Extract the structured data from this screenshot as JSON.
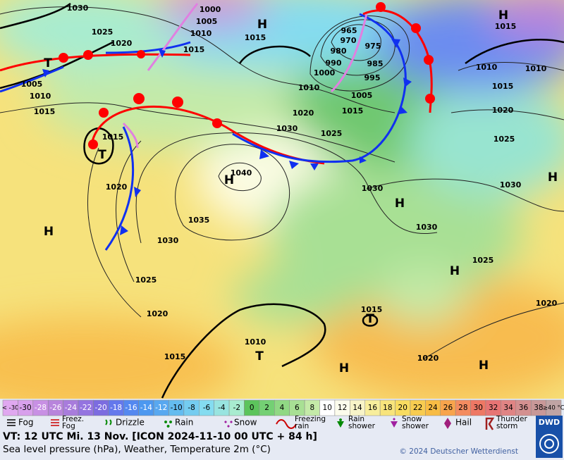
{
  "map": {
    "pressure_labels": [
      "1030",
      "1025",
      "1020",
      "1005",
      "1010",
      "1015",
      "1015",
      "1020",
      "1040",
      "1035",
      "1030",
      "1025",
      "1020",
      "1015",
      "1010",
      "1030",
      "1020",
      "1025",
      "1010",
      "1015",
      "1015",
      "1005",
      "1010",
      "1015",
      "1000",
      "965",
      "970",
      "975",
      "980",
      "990",
      "985",
      "1000",
      "995",
      "1005",
      "1030",
      "1030",
      "1025",
      "1030",
      "1020",
      "1020",
      "1015",
      "1015",
      "1010",
      "1010",
      "1015",
      "1020",
      "1025"
    ],
    "centers": [
      "H",
      "H",
      "T",
      "T",
      "H",
      "H",
      "H",
      "H",
      "H",
      "H",
      "H",
      "T",
      "T"
    ]
  },
  "temperature_scale": {
    "labels": [
      "< -30",
      "-30",
      "-28",
      "-26",
      "-24",
      "-22",
      "-20",
      "-18",
      "-16",
      "-14",
      "-12",
      "-10",
      "-8",
      "-6",
      "-4",
      "-2",
      "0",
      "2",
      "4",
      "6",
      "8",
      "10",
      "12",
      "14",
      "16",
      "18",
      "20",
      "22",
      "24",
      "26",
      "28",
      "30",
      "32",
      "34",
      "36",
      "38",
      "≥40 °C"
    ],
    "colors": [
      "#e0a8f0",
      "#d8a0ec",
      "#c890e4",
      "#b884dc",
      "#a87cdc",
      "#9474e0",
      "#7c6ce0",
      "#6478ec",
      "#5488f0",
      "#4c98f0",
      "#58a8f0",
      "#64bcf0",
      "#74ccf0",
      "#84dcf0",
      "#98e4e0",
      "#a8ecd0",
      "#5cc45c",
      "#74d074",
      "#90d884",
      "#a8e094",
      "#c4eaa8",
      "#ffffff",
      "#fcfcec",
      "#f8f4c8",
      "#f8ee9c",
      "#f8e47c",
      "#f8dc60",
      "#f8cc50",
      "#f8bc44",
      "#f8a44c",
      "#f48c60",
      "#ee7864",
      "#e87474",
      "#e08484",
      "#d49090",
      "#c89898",
      "#c0a4a4"
    ]
  },
  "weather_legend": [
    [
      "Fog"
    ],
    [
      "Freez.",
      "Fog"
    ],
    [
      "Drizzle"
    ],
    [
      "Rain"
    ],
    [
      "Snow"
    ],
    [
      "Freezing",
      "rain"
    ],
    [
      "Rain",
      "shower"
    ],
    [
      "Snow",
      "shower"
    ],
    [
      "Hail"
    ],
    [
      "Thunder",
      "storm"
    ]
  ],
  "footer": {
    "valid_time": "VT: 12 UTC Mi.  13 Nov. [ICON 2024-11-10  00 UTC + 84 h]",
    "description": "Sea level pressure (hPa), Weather, Temperature 2m (°C)",
    "copyright": "© 2024 Deutscher Wetterdienst",
    "logo": "DWD"
  }
}
